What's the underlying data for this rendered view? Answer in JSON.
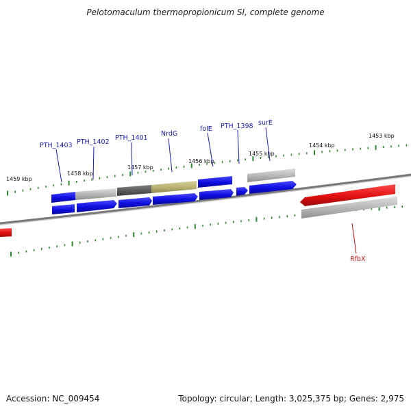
{
  "title": "Pelotomaculum thermopropionicum SI, complete genome",
  "footer": {
    "accession": "Accession: NC_009454",
    "summary": "Topology: circular; Length: 3,025,375 bp; Genes: 2,975"
  },
  "colors": {
    "backbone": "#7a7a7a",
    "tick": "#2a8a2a",
    "gene_blue": "#1515e6",
    "gene_red": "#e01010",
    "gene_gray": "#b8b8b8",
    "gene_darkgray": "#5e5e5e",
    "gene_olive": "#b8b070",
    "label_blue": "#1a1ab0",
    "label_red": "#c01010"
  },
  "scale_labels": [
    "1459 kbp",
    "1458 kbp",
    "1457 kbp",
    "1456 kbp",
    "1455 kbp",
    "1454 kbp",
    "1453 kbp"
  ],
  "gene_labels": [
    {
      "id": "PTH_1403",
      "text": "PTH_1403",
      "color": "label_blue"
    },
    {
      "id": "PTH_1402",
      "text": "PTH_1402",
      "color": "label_blue"
    },
    {
      "id": "PTH_1401",
      "text": "PTH_1401",
      "color": "label_blue"
    },
    {
      "id": "NrdG",
      "text": "NrdG",
      "color": "label_blue"
    },
    {
      "id": "folE",
      "text": "folE",
      "color": "label_blue"
    },
    {
      "id": "PTH_1398",
      "text": "PTH_1398",
      "color": "label_blue"
    },
    {
      "id": "surE",
      "text": "surE",
      "color": "label_blue"
    },
    {
      "id": "RfbX",
      "text": "RfbX",
      "color": "label_red"
    }
  ]
}
